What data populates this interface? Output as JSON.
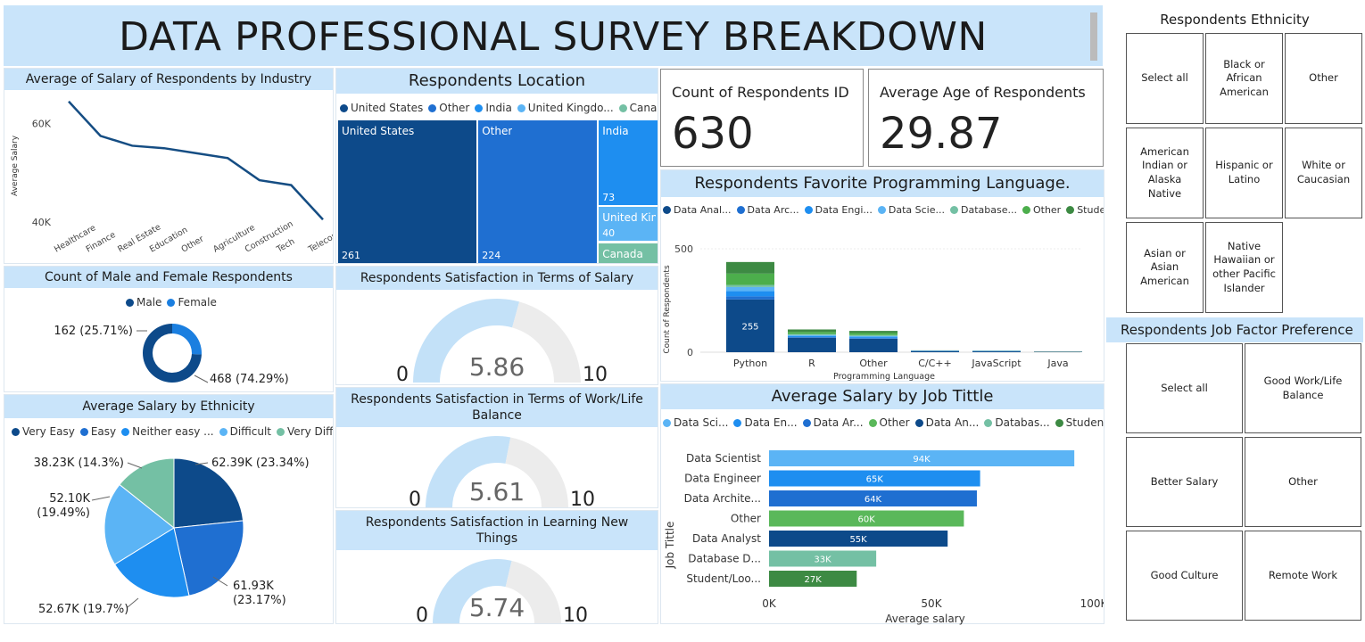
{
  "title": "DATA PROFESSIONAL SURVEY BREAKDOWN",
  "salary_by_industry": {
    "title": "Average of Salary of Respondents by Industry",
    "ylabel": "Average Salary",
    "yticks": [
      "60K",
      "40K"
    ],
    "chart_data": {
      "type": "line",
      "categories": [
        "Healthcare",
        "Finance",
        "Real Estate",
        "Education",
        "Other",
        "Agriculture",
        "Construction",
        "Tech",
        "Telecommu..."
      ],
      "values": [
        64500,
        57500,
        55500,
        55000,
        54000,
        53000,
        48500,
        47500,
        40500
      ],
      "ylabel": "Average Salary",
      "ylim": [
        40000,
        65000
      ]
    }
  },
  "gender": {
    "title": "Count of Male and Female Respondents",
    "legend": [
      {
        "name": "Male",
        "color": "#0d4a8a"
      },
      {
        "name": "Female",
        "color": "#1b7fe0"
      }
    ],
    "chart_data": {
      "type": "pie",
      "categories": [
        "Male",
        "Female"
      ],
      "values": [
        468,
        162
      ],
      "labels": [
        "468 (74.29%)",
        "162 (25.71%)"
      ]
    }
  },
  "ethnicity_salary": {
    "title": "Average Salary by Ethnicity",
    "legend": [
      {
        "name": "Very Easy",
        "color": "#0d4a8a"
      },
      {
        "name": "Easy",
        "color": "#1f6fd1"
      },
      {
        "name": "Neither easy ...",
        "color": "#1e8ef0"
      },
      {
        "name": "Difficult",
        "color": "#5bb4f5"
      },
      {
        "name": "Very Diffic...",
        "color": "#74c0a4"
      }
    ],
    "chart_data": {
      "type": "pie",
      "categories": [
        "Very Easy",
        "Easy",
        "Neither easy ...",
        "Difficult",
        "Very Diffic..."
      ],
      "values": [
        62.39,
        61.93,
        52.67,
        52.1,
        38.23
      ],
      "labels": [
        "62.39K (23.34%)",
        "61.93K (23.17%)",
        "52.67K (19.7%)",
        "52.10K (19.49%)",
        "38.23K (14.3%)"
      ]
    }
  },
  "location": {
    "title": "Respondents Location",
    "legend": [
      {
        "name": "United States",
        "color": "#0d4a8a"
      },
      {
        "name": "Other",
        "color": "#1f6fd1"
      },
      {
        "name": "India",
        "color": "#1e8ef0"
      },
      {
        "name": "United Kingdo...",
        "color": "#5bb4f5"
      },
      {
        "name": "Canada",
        "color": "#74c0a4"
      }
    ],
    "chart_data": {
      "type": "treemap",
      "categories": [
        "United States",
        "Other",
        "India",
        "United Kin...",
        "Canada"
      ],
      "values": [
        261,
        224,
        73,
        40,
        null
      ]
    }
  },
  "sat_salary": {
    "title": "Respondents Satisfaction in Terms of Salary",
    "value": "5.86",
    "min": "0",
    "max": "10",
    "chart_data": {
      "type": "gauge",
      "value": 5.86,
      "min": 0,
      "max": 10
    }
  },
  "sat_worklife": {
    "title": "Respondents Satisfaction in Terms of Work/Life Balance",
    "value": "5.61",
    "min": "0",
    "max": "10",
    "chart_data": {
      "type": "gauge",
      "value": 5.61,
      "min": 0,
      "max": 10
    }
  },
  "sat_learning": {
    "title": "Respondents Satisfaction in Learning New Things",
    "value": "5.74",
    "min": "0",
    "max": "10",
    "chart_data": {
      "type": "gauge",
      "value": 5.74,
      "min": 0,
      "max": 10
    }
  },
  "kpi_count": {
    "label": "Count of Respondents ID",
    "value": "630"
  },
  "kpi_age": {
    "label": "Average Age of Respondents",
    "value": "29.87"
  },
  "prog_lang": {
    "title": "Respondents Favorite Programming Language.",
    "ylabel": "Count of Respondents",
    "xlabel": "Programming Language",
    "yticks": [
      "500",
      "0"
    ],
    "legend": [
      {
        "name": "Data Anal...",
        "color": "#0d4a8a"
      },
      {
        "name": "Data Arc...",
        "color": "#1f6fd1"
      },
      {
        "name": "Data Engi...",
        "color": "#1e8ef0"
      },
      {
        "name": "Data Scie...",
        "color": "#5bb4f5"
      },
      {
        "name": "Database...",
        "color": "#74c0a4"
      },
      {
        "name": "Other",
        "color": "#4cae4c"
      },
      {
        "name": "Student/...",
        "color": "#3d8a43"
      }
    ],
    "chart_data": {
      "type": "bar",
      "stacked": true,
      "categories": [
        "Python",
        "R",
        "Other",
        "C/C++",
        "JavaScript",
        "Java"
      ],
      "series": [
        {
          "name": "Data Anal...",
          "values": [
            255,
            70,
            65,
            5,
            4,
            2
          ]
        },
        {
          "name": "Data Arc...",
          "values": [
            15,
            3,
            3,
            1,
            1,
            0
          ]
        },
        {
          "name": "Data Engi...",
          "values": [
            25,
            5,
            5,
            1,
            1,
            0
          ]
        },
        {
          "name": "Data Scie...",
          "values": [
            20,
            5,
            5,
            1,
            1,
            0
          ]
        },
        {
          "name": "Database...",
          "values": [
            10,
            5,
            5,
            0,
            0,
            0
          ]
        },
        {
          "name": "Other",
          "values": [
            55,
            10,
            10,
            0,
            0,
            0
          ]
        },
        {
          "name": "Student/...",
          "values": [
            56,
            12,
            10,
            1,
            1,
            1
          ]
        }
      ],
      "data_labels": [
        "255"
      ],
      "ylim": [
        0,
        500
      ]
    }
  },
  "job_salary": {
    "title": "Average Salary by Job Tittle",
    "ylabel": "Job Tittle",
    "xlabel": "Average salary",
    "xticks": [
      "0K",
      "50K",
      "100K"
    ],
    "legend": [
      {
        "name": "Data Sci...",
        "color": "#5bb4f5"
      },
      {
        "name": "Data En...",
        "color": "#1e8ef0"
      },
      {
        "name": "Data Ar...",
        "color": "#1f6fd1"
      },
      {
        "name": "Other",
        "color": "#5ab85a"
      },
      {
        "name": "Data An...",
        "color": "#0d4a8a"
      },
      {
        "name": "Databas...",
        "color": "#74c0a4"
      },
      {
        "name": "Student...",
        "color": "#3d8a43"
      }
    ],
    "chart_data": {
      "type": "bar",
      "orientation": "horizontal",
      "categories": [
        "Data Scientist",
        "Data Engineer",
        "Data Archite...",
        "Other",
        "Data Analyst",
        "Database D...",
        "Student/Loo..."
      ],
      "values": [
        94,
        65,
        64,
        60,
        55,
        33,
        27
      ],
      "data_labels": [
        "94K",
        "65K",
        "64K",
        "60K",
        "55K",
        "33K",
        "27K"
      ],
      "colors": [
        "#5bb4f5",
        "#1e8ef0",
        "#1f6fd1",
        "#5ab85a",
        "#0d4a8a",
        "#74c0a4",
        "#3d8a43"
      ],
      "xlim": [
        0,
        100
      ]
    }
  },
  "ethnicity_slicer": {
    "title": "Respondents Ethnicity",
    "items": [
      "Select all",
      "Black or African American",
      "Other",
      "American Indian or Alaska Native",
      "Hispanic or Latino",
      "White or Caucasian",
      "Asian or Asian American",
      "Native Hawaiian or other Pacific Islander"
    ]
  },
  "job_factor_slicer": {
    "title": "Respondents Job Factor Preference",
    "items": [
      "Select all",
      "Good Work/Life Balance",
      "Better Salary",
      "Other",
      "Good Culture",
      "Remote Work"
    ]
  }
}
